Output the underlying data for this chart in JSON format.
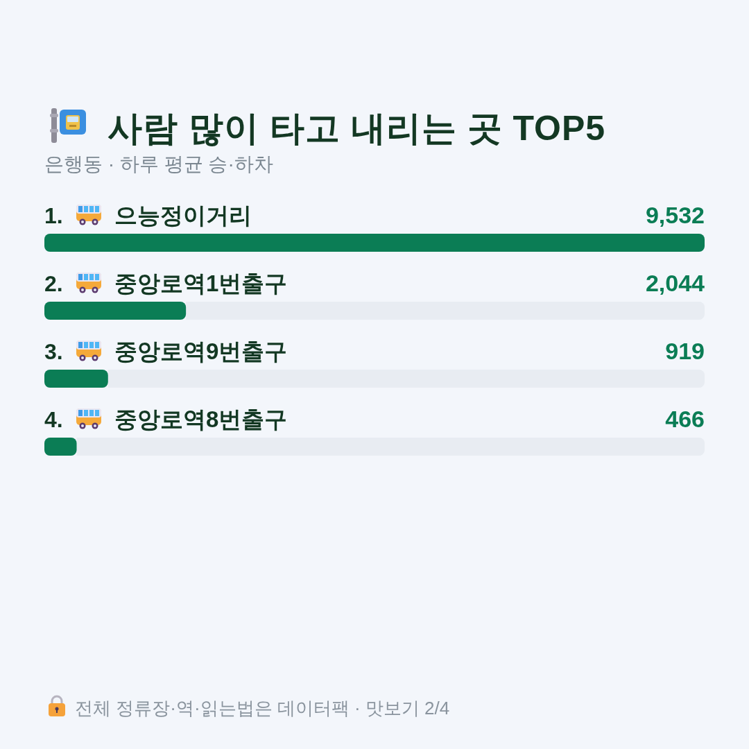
{
  "chart_data": {
    "type": "bar",
    "orientation": "horizontal",
    "title": "사람 많이 타고 내리는 곳 TOP5",
    "subtitle": "은행동 · 하루 평균 승·하차",
    "categories": [
      "1. 으능정이거리",
      "2. 중앙로역1번출구",
      "3. 중앙로역9번출구",
      "4. 중앙로역8번출구"
    ],
    "values": [
      9532,
      2044,
      919,
      466
    ],
    "color": "#0b7d55",
    "value_labels": [
      "9,532",
      "2,044",
      "919",
      "466"
    ],
    "annotations": [
      "전체 정류장·역·읽는법은 데이터팩 · 맛보기 2/4"
    ]
  }
}
